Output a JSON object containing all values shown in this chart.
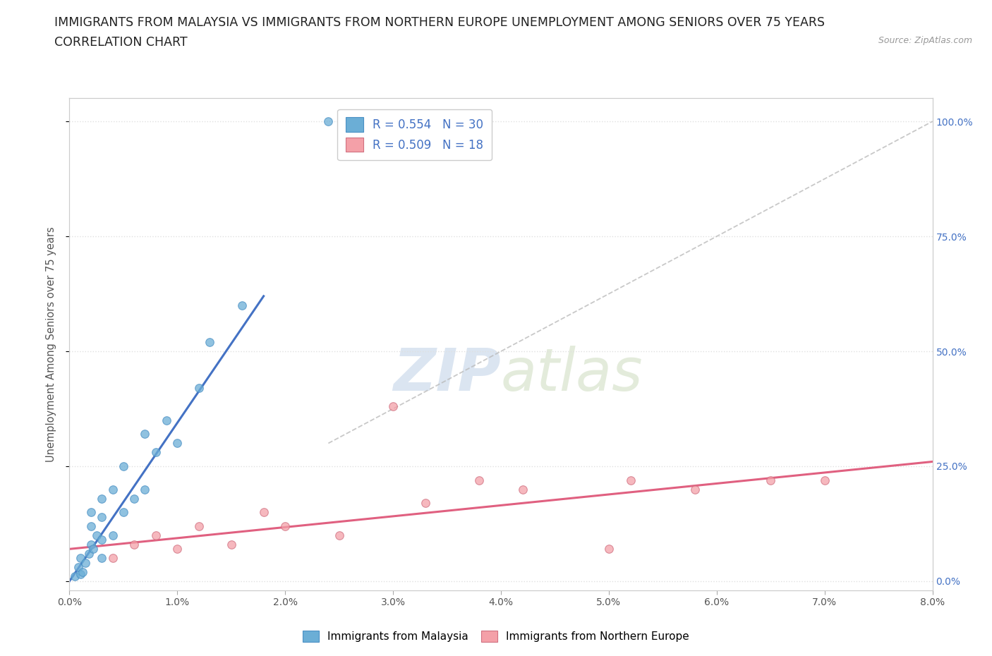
{
  "title_line1": "IMMIGRANTS FROM MALAYSIA VS IMMIGRANTS FROM NORTHERN EUROPE UNEMPLOYMENT AMONG SENIORS OVER 75 YEARS",
  "title_line2": "CORRELATION CHART",
  "source": "Source: ZipAtlas.com",
  "ylabel": "Unemployment Among Seniors over 75 years",
  "xlim": [
    0.0,
    0.08
  ],
  "ylim": [
    -0.02,
    1.05
  ],
  "xticks": [
    0.0,
    0.01,
    0.02,
    0.03,
    0.04,
    0.05,
    0.06,
    0.07,
    0.08
  ],
  "xticklabels": [
    "0.0%",
    "1.0%",
    "2.0%",
    "3.0%",
    "4.0%",
    "5.0%",
    "6.0%",
    "7.0%",
    "8.0%"
  ],
  "yticks": [
    0.0,
    0.25,
    0.5,
    0.75,
    1.0
  ],
  "right_ytick_labels": [
    "0.0%",
    "25.0%",
    "50.0%",
    "75.0%",
    "100.0%"
  ],
  "malaysia_color": "#6baed6",
  "malaysia_edge": "#4a90c4",
  "northern_europe_color": "#f4a0a8",
  "northern_europe_edge": "#d07080",
  "trend_malaysia_color": "#4472c4",
  "trend_ne_color": "#e06080",
  "malaysia_R": 0.554,
  "malaysia_N": 30,
  "northern_europe_R": 0.509,
  "northern_europe_N": 18,
  "malaysia_scatter_x": [
    0.0005,
    0.0008,
    0.001,
    0.001,
    0.0012,
    0.0015,
    0.0018,
    0.002,
    0.002,
    0.002,
    0.0022,
    0.0025,
    0.003,
    0.003,
    0.003,
    0.003,
    0.004,
    0.004,
    0.005,
    0.005,
    0.006,
    0.007,
    0.007,
    0.008,
    0.009,
    0.01,
    0.012,
    0.013,
    0.016,
    0.024
  ],
  "malaysia_scatter_y": [
    0.01,
    0.03,
    0.015,
    0.05,
    0.02,
    0.04,
    0.06,
    0.08,
    0.12,
    0.15,
    0.07,
    0.1,
    0.05,
    0.09,
    0.14,
    0.18,
    0.1,
    0.2,
    0.15,
    0.25,
    0.18,
    0.2,
    0.32,
    0.28,
    0.35,
    0.3,
    0.42,
    0.52,
    0.6,
    1.0
  ],
  "northern_europe_scatter_x": [
    0.004,
    0.006,
    0.008,
    0.01,
    0.012,
    0.015,
    0.018,
    0.02,
    0.025,
    0.03,
    0.033,
    0.038,
    0.042,
    0.05,
    0.052,
    0.058,
    0.065,
    0.07
  ],
  "northern_europe_scatter_y": [
    0.05,
    0.08,
    0.1,
    0.07,
    0.12,
    0.08,
    0.15,
    0.12,
    0.1,
    0.38,
    0.17,
    0.22,
    0.2,
    0.07,
    0.22,
    0.2,
    0.22,
    0.22
  ],
  "malaysia_trend_x": [
    0.0,
    0.018
  ],
  "malaysia_trend_y": [
    0.0,
    0.62
  ],
  "ne_trend_x": [
    0.0,
    0.08
  ],
  "ne_trend_y": [
    0.07,
    0.26
  ],
  "diag_line_x": [
    0.024,
    0.08
  ],
  "diag_line_y": [
    0.3,
    1.0
  ],
  "watermark_zip": "ZIP",
  "watermark_atlas": "atlas",
  "background_color": "#ffffff",
  "grid_color": "#e0e0e0",
  "marker_size": 70,
  "title_fontsize": 12.5,
  "legend_color": "#4472c4"
}
